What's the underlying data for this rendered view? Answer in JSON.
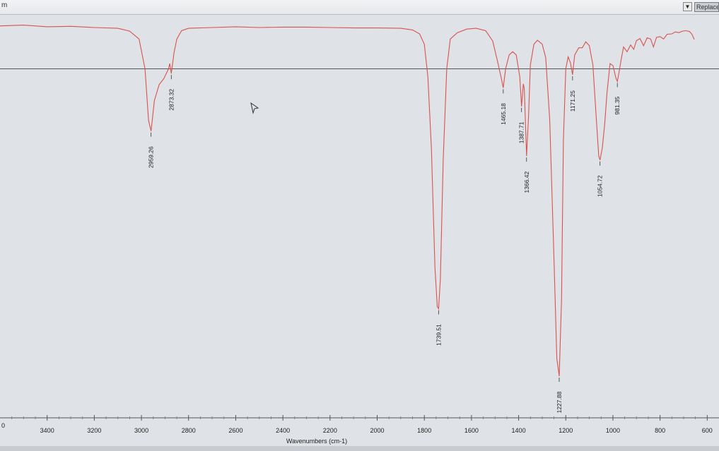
{
  "toolbar": {
    "left_text": "m",
    "replace_label": "Replace"
  },
  "colors": {
    "spectrum": "#d9534f",
    "axis": "#555555",
    "plot_background": "#dfe2e6"
  },
  "chart_data": {
    "type": "line",
    "xlabel": "Wavenumbers (cm-1)",
    "ylabel": "",
    "title": "",
    "x_reversed": true,
    "xlim": [
      3600,
      550
    ],
    "x_ticks": [
      3400,
      3200,
      3000,
      2800,
      2600,
      2400,
      2200,
      2000,
      1800,
      1600,
      1400,
      1200,
      1000,
      800,
      600
    ],
    "edge_tick_text": "0",
    "grid": false,
    "ylim": [
      0,
      100
    ],
    "reference_line": {
      "y": 88
    },
    "series": [
      {
        "points": [
          [
            3600,
            98.8
          ],
          [
            3500,
            99.0
          ],
          [
            3400,
            98.6
          ],
          [
            3300,
            98.7
          ],
          [
            3200,
            98.4
          ],
          [
            3100,
            98.2
          ],
          [
            3050,
            97.5
          ],
          [
            3010,
            95.5
          ],
          [
            2985,
            88
          ],
          [
            2970,
            75
          ],
          [
            2959.26,
            72.3
          ],
          [
            2945,
            80
          ],
          [
            2925,
            84
          ],
          [
            2905,
            85.5
          ],
          [
            2885,
            88
          ],
          [
            2880,
            89.3
          ],
          [
            2873.32,
            86.8
          ],
          [
            2862,
            92
          ],
          [
            2850,
            95.5
          ],
          [
            2830,
            97.6
          ],
          [
            2800,
            98.2
          ],
          [
            2700,
            98.4
          ],
          [
            2600,
            98.6
          ],
          [
            2500,
            98.4
          ],
          [
            2400,
            98.5
          ],
          [
            2300,
            98.5
          ],
          [
            2200,
            98.4
          ],
          [
            2100,
            98.3
          ],
          [
            2000,
            98.3
          ],
          [
            1900,
            98.2
          ],
          [
            1850,
            97.8
          ],
          [
            1820,
            96.8
          ],
          [
            1800,
            94.2
          ],
          [
            1785,
            86
          ],
          [
            1770,
            68
          ],
          [
            1755,
            38
          ],
          [
            1745,
            28
          ],
          [
            1739.51,
            27.5
          ],
          [
            1732,
            35
          ],
          [
            1720,
            65
          ],
          [
            1705,
            88
          ],
          [
            1690,
            95.5
          ],
          [
            1660,
            97.1
          ],
          [
            1620,
            98.0
          ],
          [
            1580,
            98.2
          ],
          [
            1540,
            97.6
          ],
          [
            1510,
            95
          ],
          [
            1490,
            90
          ],
          [
            1475,
            86
          ],
          [
            1465.18,
            83.2
          ],
          [
            1455,
            88
          ],
          [
            1440,
            91.5
          ],
          [
            1425,
            92.3
          ],
          [
            1410,
            91.5
          ],
          [
            1395,
            86
          ],
          [
            1387.71,
            78.5
          ],
          [
            1380,
            84.2
          ],
          [
            1376,
            83
          ],
          [
            1366.42,
            66
          ],
          [
            1358,
            76
          ],
          [
            1350,
            89
          ],
          [
            1335,
            94.2
          ],
          [
            1320,
            95.2
          ],
          [
            1300,
            94.2
          ],
          [
            1285,
            90.8
          ],
          [
            1268,
            75
          ],
          [
            1250,
            40
          ],
          [
            1238,
            15
          ],
          [
            1227.88,
            10.5
          ],
          [
            1218,
            30
          ],
          [
            1210,
            70
          ],
          [
            1200,
            88
          ],
          [
            1190,
            91
          ],
          [
            1180,
            89.5
          ],
          [
            1171.25,
            86.5
          ],
          [
            1162,
            91.5
          ],
          [
            1145,
            93.3
          ],
          [
            1130,
            93.3
          ],
          [
            1115,
            94.8
          ],
          [
            1100,
            93.8
          ],
          [
            1085,
            89
          ],
          [
            1070,
            75
          ],
          [
            1060,
            66
          ],
          [
            1054.72,
            65
          ],
          [
            1045,
            68
          ],
          [
            1035,
            74
          ],
          [
            1025,
            82
          ],
          [
            1012,
            89.3
          ],
          [
            1000,
            88.8
          ],
          [
            988,
            85.8
          ],
          [
            981.35,
            84.8
          ],
          [
            975,
            86.8
          ],
          [
            965,
            90.3
          ],
          [
            955,
            93.5
          ],
          [
            940,
            92.3
          ],
          [
            925,
            94.0
          ],
          [
            912,
            92.9
          ],
          [
            900,
            95.1
          ],
          [
            885,
            95.6
          ],
          [
            870,
            93.8
          ],
          [
            855,
            95.8
          ],
          [
            840,
            95.5
          ],
          [
            828,
            93.5
          ],
          [
            815,
            95.9
          ],
          [
            800,
            96.1
          ],
          [
            785,
            95.5
          ],
          [
            770,
            96.7
          ],
          [
            750,
            96.8
          ],
          [
            735,
            97.3
          ],
          [
            720,
            97.1
          ],
          [
            705,
            97.5
          ],
          [
            690,
            97.6
          ],
          [
            675,
            97.4
          ],
          [
            665,
            96.7
          ],
          [
            655,
            95.4
          ]
        ]
      }
    ],
    "peak_labels": [
      {
        "x": 2959.26,
        "y": 72.3,
        "text": "2959.26"
      },
      {
        "x": 2873.32,
        "y": 86.8,
        "text": "2873.32"
      },
      {
        "x": 1739.51,
        "y": 27.5,
        "text": "1739.51"
      },
      {
        "x": 1465.18,
        "y": 83.2,
        "text": "1465.18"
      },
      {
        "x": 1387.71,
        "y": 78.5,
        "text": "1387.71"
      },
      {
        "x": 1366.42,
        "y": 66.0,
        "text": "1366.42"
      },
      {
        "x": 1227.88,
        "y": 10.5,
        "text": "1227.88"
      },
      {
        "x": 1171.25,
        "y": 86.5,
        "text": "1171.25"
      },
      {
        "x": 1054.72,
        "y": 65.0,
        "text": "1054.72"
      },
      {
        "x": 981.35,
        "y": 84.8,
        "text": "981.35"
      }
    ]
  }
}
